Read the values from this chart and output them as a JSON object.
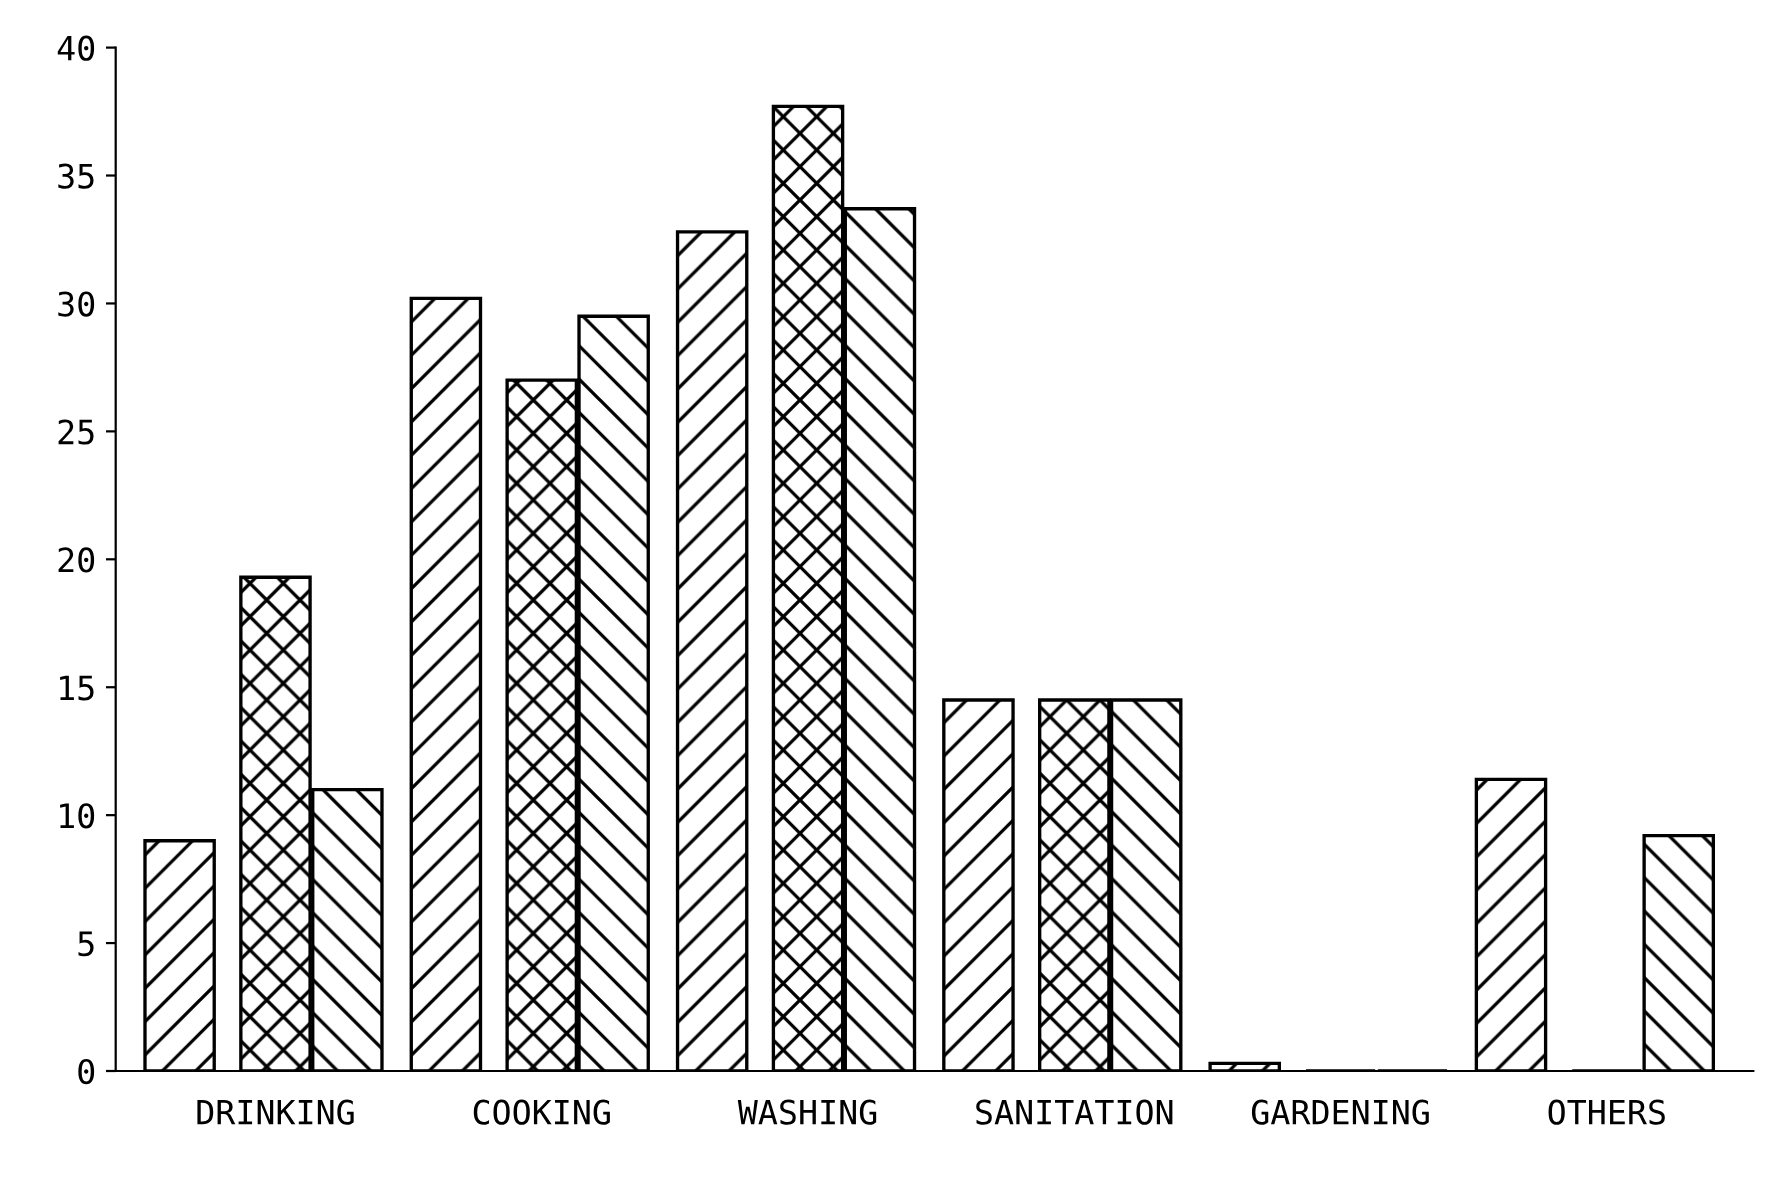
{
  "chart_data": {
    "type": "bar",
    "categories": [
      "DRINKING",
      "COOKING",
      "WASHING",
      "SANITATION",
      "GARDENING",
      "OTHERS"
    ],
    "series": [
      {
        "color": "#000000",
        "values": [
          9,
          30.2,
          32.8,
          14.5,
          0.3,
          11.4
        ]
      },
      {
        "color": "#000000",
        "values": [
          19.3,
          27,
          37.7,
          14.5,
          0,
          0
        ]
      },
      {
        "color": "#000000",
        "values": [
          11,
          29.5,
          33.7,
          14.5,
          0,
          9.2
        ]
      }
    ],
    "ylim": [
      0,
      40
    ],
    "yticks": [
      0,
      5,
      10,
      15,
      20,
      25,
      30,
      35,
      40
    ],
    "grid": false,
    "legend": false
  }
}
